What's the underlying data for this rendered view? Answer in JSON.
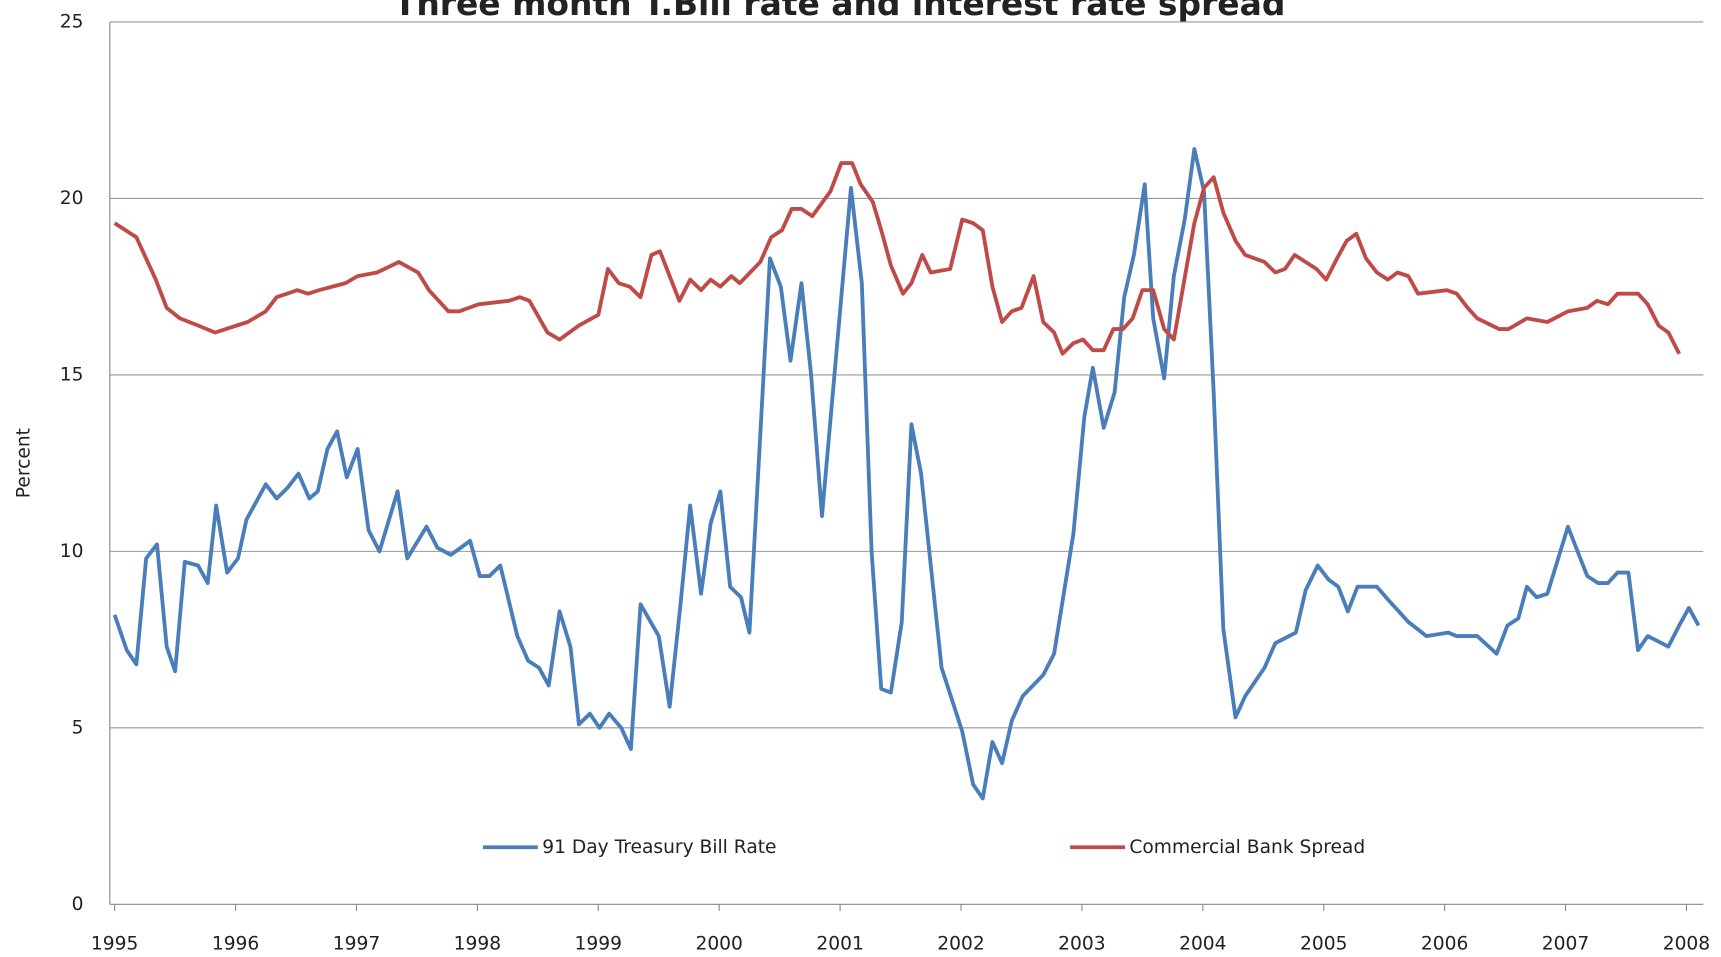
{
  "chart_data": {
    "type": "line",
    "title": "Three month T.Bill rate and interest rate spread",
    "y_label": "Percent",
    "xlim": [
      1994.96,
      2008.14
    ],
    "xticks": [
      1995,
      1996,
      1997,
      1998,
      1999,
      2000,
      2001,
      2002,
      2003,
      2004,
      2005,
      2006,
      2007,
      2008
    ],
    "ylim": [
      0,
      25
    ],
    "yticks": [
      0,
      5,
      10,
      15,
      20,
      25
    ],
    "grid": true,
    "legend": "bottom",
    "series": [
      {
        "name": "91 Day Treasury Bill Rate",
        "color": "#4a7ebb",
        "x": [
          1995.0,
          1995.1,
          1995.18,
          1995.26,
          1995.35,
          1995.43,
          1995.5,
          1995.58,
          1995.69,
          1995.77,
          1995.84,
          1995.93,
          1996.02,
          1996.09,
          1996.25,
          1996.34,
          1996.43,
          1996.52,
          1996.61,
          1996.68,
          1996.76,
          1996.84,
          1996.92,
          1997.01,
          1997.1,
          1997.19,
          1997.34,
          1997.42,
          1997.58,
          1997.67,
          1997.78,
          1997.94,
          1998.02,
          1998.1,
          1998.19,
          1998.33,
          1998.42,
          1998.51,
          1998.59,
          1998.68,
          1998.77,
          1998.84,
          1998.93,
          1999.01,
          1999.09,
          1999.19,
          1999.27,
          1999.35,
          1999.5,
          1999.59,
          1999.68,
          1999.76,
          1999.85,
          1999.93,
          2000.01,
          2000.09,
          2000.18,
          2000.25,
          2000.42,
          2000.51,
          2000.59,
          2000.68,
          2000.76,
          2000.85,
          2001.09,
          2001.18,
          2001.26,
          2001.34,
          2001.42,
          2001.51,
          2001.59,
          2001.67,
          2001.84,
          2002.01,
          2002.1,
          2002.18,
          2002.26,
          2002.34,
          2002.42,
          2002.51,
          2002.68,
          2002.77,
          2002.93,
          2003.02,
          2003.09,
          2003.18,
          2003.27,
          2003.35,
          2003.43,
          2003.52,
          2003.59,
          2003.68,
          2003.76,
          2003.85,
          2003.93,
          2004.01,
          2004.09,
          2004.17,
          2004.27,
          2004.35,
          2004.51,
          2004.6,
          2004.77,
          2004.85,
          2004.95,
          2005.04,
          2005.12,
          2005.2,
          2005.28,
          2005.44,
          2005.54,
          2005.7,
          2005.85,
          2006.03,
          2006.1,
          2006.27,
          2006.43,
          2006.52,
          2006.61,
          2006.68,
          2006.76,
          2006.85,
          2007.02,
          2007.18,
          2007.27,
          2007.35,
          2007.43,
          2007.52,
          2007.6,
          2007.68,
          2007.85,
          2007.94,
          2008.02,
          2008.1
        ],
        "values": [
          8.2,
          7.2,
          6.8,
          9.8,
          10.2,
          7.3,
          6.6,
          9.7,
          9.6,
          9.1,
          11.3,
          9.4,
          9.8,
          10.9,
          11.9,
          11.5,
          11.8,
          12.2,
          11.5,
          11.7,
          12.9,
          13.4,
          12.1,
          12.9,
          10.6,
          10.0,
          11.7,
          9.8,
          10.7,
          10.1,
          9.9,
          10.3,
          9.3,
          9.3,
          9.6,
          7.6,
          6.9,
          6.7,
          6.2,
          8.3,
          7.3,
          5.1,
          5.4,
          5.0,
          5.4,
          5.0,
          4.4,
          8.5,
          7.6,
          5.6,
          8.5,
          11.3,
          8.8,
          10.8,
          11.7,
          9.0,
          8.7,
          7.7,
          18.3,
          17.5,
          15.4,
          17.6,
          15.0,
          11.0,
          20.3,
          17.6,
          10.0,
          6.1,
          6.0,
          8.0,
          13.6,
          12.2,
          6.7,
          4.9,
          3.4,
          3.0,
          4.6,
          4.0,
          5.2,
          5.9,
          6.5,
          7.1,
          10.5,
          13.8,
          15.2,
          13.5,
          14.5,
          17.2,
          18.4,
          20.4,
          16.6,
          14.9,
          17.8,
          19.4,
          21.4,
          20.2,
          14.5,
          7.8,
          5.3,
          5.9,
          6.7,
          7.4,
          7.7,
          8.9,
          9.6,
          9.2,
          9.0,
          8.3,
          9.0,
          9.0,
          8.6,
          8.0,
          7.6,
          7.7,
          7.6,
          7.6,
          7.1,
          7.9,
          8.1,
          9.0,
          8.7,
          8.8,
          10.7,
          9.3,
          9.1,
          9.1,
          9.4,
          9.4,
          7.2,
          7.6,
          7.3,
          7.9,
          8.4,
          7.9
        ]
      },
      {
        "name": "Commercial Bank Spread",
        "color": "#be4b48",
        "x": [
          1995.0,
          1995.18,
          1995.34,
          1995.43,
          1995.54,
          1995.69,
          1995.83,
          1996.1,
          1996.25,
          1996.34,
          1996.51,
          1996.6,
          1996.69,
          1996.91,
          1997.01,
          1997.17,
          1997.35,
          1997.51,
          1997.6,
          1997.76,
          1997.85,
          1998.01,
          1998.26,
          1998.35,
          1998.43,
          1998.58,
          1998.68,
          1998.84,
          1999.0,
          1999.08,
          1999.17,
          1999.26,
          1999.35,
          1999.44,
          1999.51,
          1999.67,
          1999.76,
          1999.85,
          1999.93,
          2000.01,
          2000.1,
          2000.17,
          2000.34,
          2000.43,
          2000.52,
          2000.6,
          2000.68,
          2000.77,
          2000.92,
          2001.01,
          2001.1,
          2001.17,
          2001.27,
          2001.34,
          2001.42,
          2001.52,
          2001.59,
          2001.68,
          2001.75,
          2001.91,
          2002.01,
          2002.1,
          2002.18,
          2002.26,
          2002.34,
          2002.42,
          2002.5,
          2002.6,
          2002.68,
          2002.77,
          2002.84,
          2002.93,
          2003.01,
          2003.09,
          2003.18,
          2003.26,
          2003.34,
          2003.42,
          2003.5,
          2003.59,
          2003.68,
          2003.76,
          2003.93,
          2004.01,
          2004.09,
          2004.17,
          2004.27,
          2004.35,
          2004.51,
          2004.6,
          2004.68,
          2004.76,
          2004.85,
          2004.94,
          2005.02,
          2005.11,
          2005.19,
          2005.27,
          2005.35,
          2005.44,
          2005.53,
          2005.61,
          2005.7,
          2005.78,
          2006.02,
          2006.1,
          2006.19,
          2006.27,
          2006.45,
          2006.53,
          2006.68,
          2006.85,
          2007.02,
          2007.18,
          2007.26,
          2007.35,
          2007.43,
          2007.6,
          2007.68,
          2007.77,
          2007.85,
          2007.94
        ],
        "values": [
          19.3,
          18.9,
          17.7,
          16.9,
          16.6,
          16.4,
          16.2,
          16.5,
          16.8,
          17.2,
          17.4,
          17.3,
          17.4,
          17.6,
          17.8,
          17.9,
          18.2,
          17.9,
          17.4,
          16.8,
          16.8,
          17.0,
          17.1,
          17.2,
          17.1,
          16.2,
          16.0,
          16.4,
          16.7,
          18.0,
          17.6,
          17.5,
          17.2,
          18.4,
          18.5,
          17.1,
          17.7,
          17.4,
          17.7,
          17.5,
          17.8,
          17.6,
          18.2,
          18.9,
          19.1,
          19.7,
          19.7,
          19.5,
          20.2,
          21.0,
          21.0,
          20.4,
          19.9,
          19.1,
          18.1,
          17.3,
          17.6,
          18.4,
          17.9,
          18.0,
          19.4,
          19.3,
          19.1,
          17.5,
          16.5,
          16.8,
          16.9,
          17.8,
          16.5,
          16.2,
          15.6,
          15.9,
          16.0,
          15.7,
          15.7,
          16.3,
          16.3,
          16.6,
          17.4,
          17.4,
          16.3,
          16.0,
          19.3,
          20.3,
          20.6,
          19.6,
          18.8,
          18.4,
          18.2,
          17.9,
          18.0,
          18.4,
          18.2,
          18.0,
          17.7,
          18.3,
          18.8,
          19.0,
          18.3,
          17.9,
          17.7,
          17.9,
          17.8,
          17.3,
          17.4,
          17.3,
          16.9,
          16.6,
          16.3,
          16.3,
          16.6,
          16.5,
          16.8,
          16.9,
          17.1,
          17.0,
          17.3,
          17.3,
          17.0,
          16.4,
          16.2,
          15.6
        ]
      }
    ]
  }
}
